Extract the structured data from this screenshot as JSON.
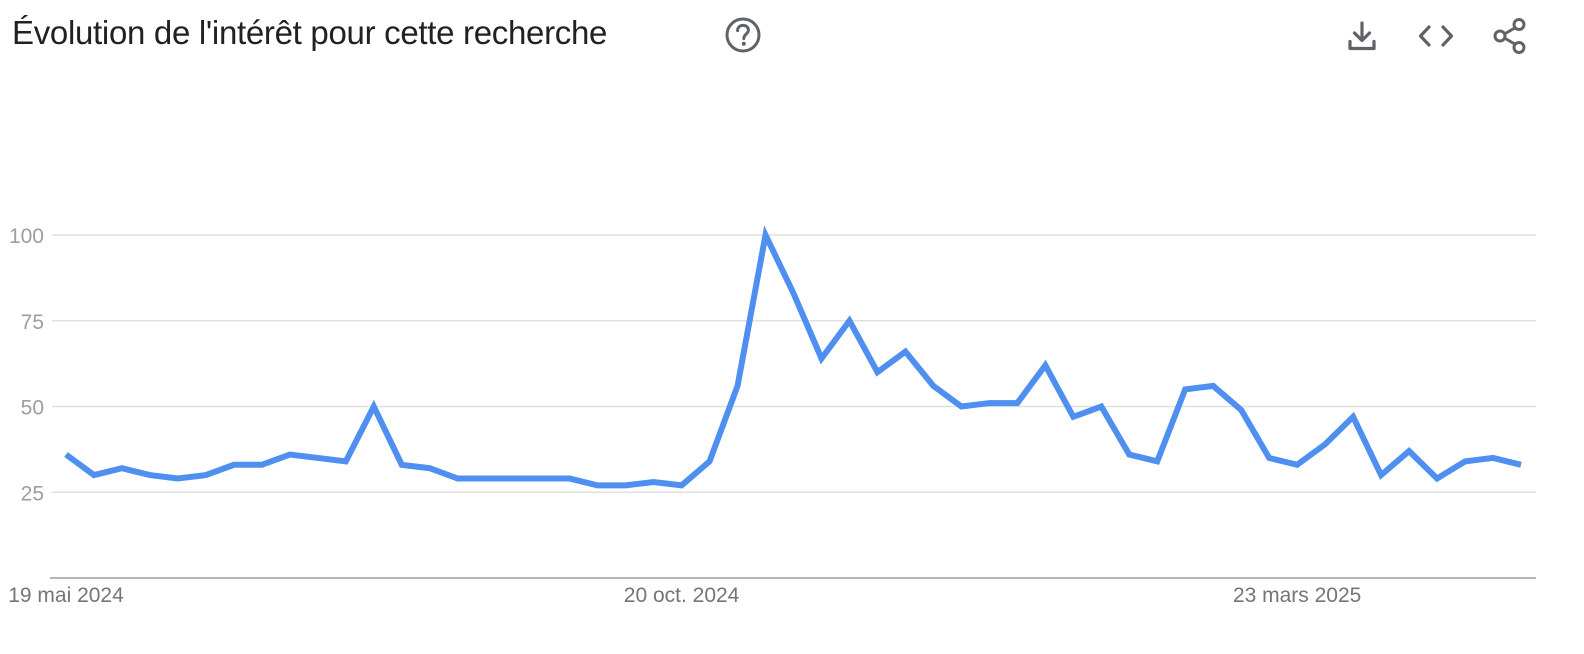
{
  "header": {
    "title": "Évolution de l'intérêt pour cette recherche",
    "help_icon": "help-circle-icon",
    "toolbar": [
      {
        "name": "download-button",
        "icon": "download-icon"
      },
      {
        "name": "embed-button",
        "icon": "code-icon"
      },
      {
        "name": "share-button",
        "icon": "share-icon"
      }
    ]
  },
  "colors": {
    "series": "#4f8ff0",
    "grid": "#e0e0e0",
    "axis": "#9e9e9e",
    "tick_text": "#9e9e9e",
    "x_tick_text": "#757575",
    "title": "#202124",
    "icon": "#5f6368"
  },
  "chart_data": {
    "type": "line",
    "title": "",
    "xlabel": "",
    "ylabel": "",
    "ylim": [
      0,
      100
    ],
    "yticks": [
      25,
      50,
      75,
      100
    ],
    "grid": true,
    "x_tick_labels": [
      {
        "label": "19 mai 2024",
        "index": 0
      },
      {
        "label": "20 oct. 2024",
        "index": 22
      },
      {
        "label": "23 mars 2025",
        "index": 44
      }
    ],
    "series": [
      {
        "name": "",
        "values": [
          36,
          30,
          32,
          30,
          29,
          30,
          33,
          33,
          36,
          35,
          34,
          50,
          33,
          32,
          29,
          29,
          29,
          29,
          29,
          27,
          27,
          28,
          27,
          34,
          56,
          100,
          83,
          64,
          75,
          60,
          66,
          56,
          50,
          51,
          51,
          62,
          47,
          50,
          36,
          34,
          55,
          56,
          49,
          35,
          33,
          39,
          47,
          30,
          37,
          29,
          34,
          35,
          33
        ]
      }
    ]
  }
}
